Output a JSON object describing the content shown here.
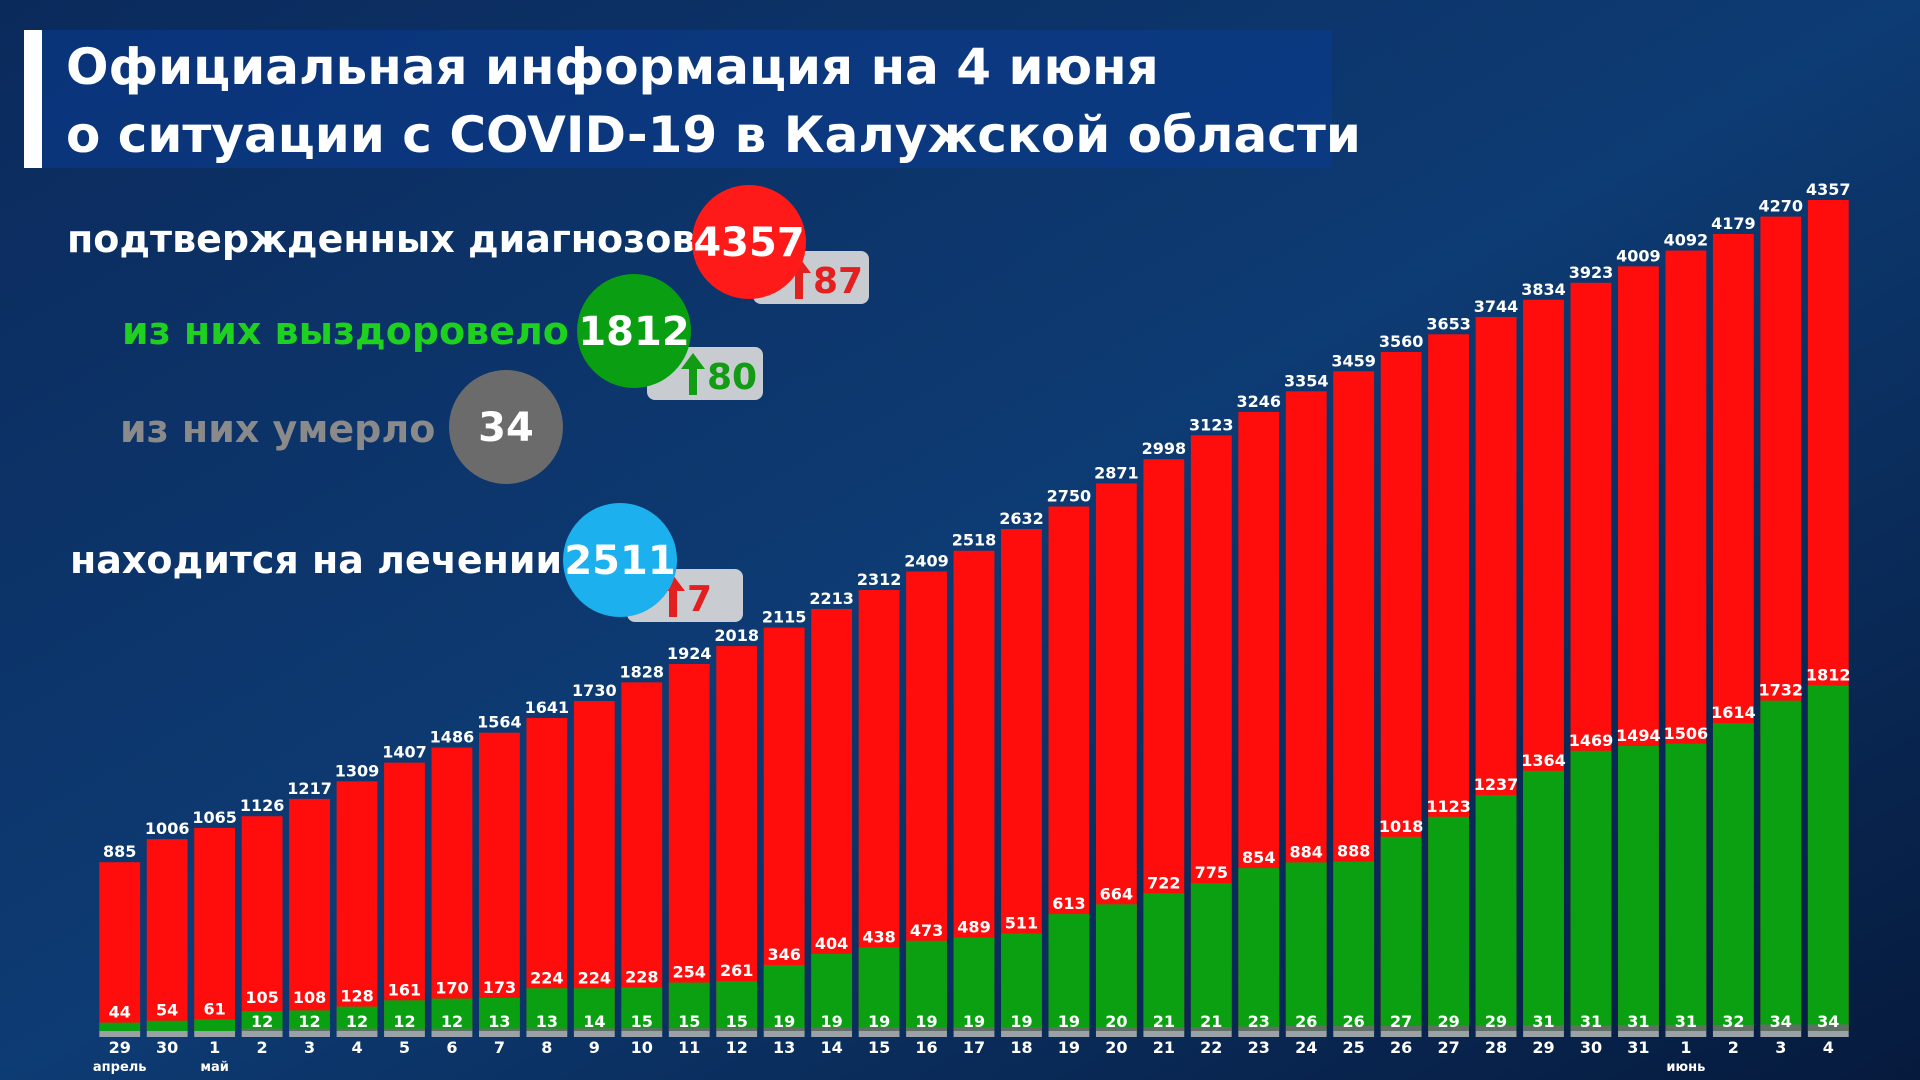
{
  "header": {
    "title": [
      "Официальная информация на 4 июня",
      "о ситуации с COVID-19 в Калужской области"
    ]
  },
  "summary": [
    {
      "label": "подтвержденных диагнозов",
      "value": 4357,
      "change": 87,
      "color": "#ff1a1a",
      "label_color": "#ffffff",
      "change_color": "#e41f1f"
    },
    {
      "label": "из них выздоровело",
      "value": 1812,
      "change": 80,
      "color": "#0a9e12",
      "label_color": "#1fd11f",
      "change_color": "#129c14"
    },
    {
      "label": "из них умерло",
      "value": 34,
      "color": "#6b6b6b",
      "label_color": "#8a8a8a"
    },
    {
      "label": "находится на лечении",
      "value": 2511,
      "change": 7,
      "color": "#1cb0ee",
      "label_color": "#ffffff",
      "change_color": "#e41f1f"
    }
  ],
  "chart_data": {
    "type": "bar",
    "categories": [
      "29",
      "30",
      "1",
      "2",
      "3",
      "4",
      "5",
      "6",
      "7",
      "8",
      "9",
      "10",
      "11",
      "12",
      "13",
      "14",
      "15",
      "16",
      "17",
      "18",
      "19",
      "20",
      "21",
      "22",
      "23",
      "24",
      "25",
      "26",
      "27",
      "28",
      "29",
      "30",
      "31",
      "1",
      "2",
      "3",
      "4"
    ],
    "months": [
      "апрель",
      null,
      "май",
      null,
      null,
      null,
      null,
      null,
      null,
      null,
      null,
      null,
      null,
      null,
      null,
      null,
      null,
      null,
      null,
      null,
      null,
      null,
      null,
      null,
      null,
      null,
      null,
      null,
      null,
      null,
      null,
      null,
      null,
      "июнь",
      null,
      null,
      null
    ],
    "series": [
      {
        "color": "#ff0d0d",
        "values": [
          885,
          1006,
          1065,
          1126,
          1217,
          1309,
          1407,
          1486,
          1564,
          1641,
          1730,
          1828,
          1924,
          2018,
          2115,
          2213,
          2312,
          2409,
          2518,
          2632,
          2750,
          2871,
          2998,
          3123,
          3246,
          3354,
          3459,
          3560,
          3653,
          3744,
          3834,
          3923,
          4009,
          4092,
          4179,
          4270,
          4357
        ]
      },
      {
        "color": "#0aa012",
        "values": [
          44,
          54,
          61,
          105,
          108,
          128,
          161,
          170,
          173,
          224,
          224,
          228,
          254,
          261,
          346,
          404,
          438,
          473,
          489,
          511,
          613,
          664,
          722,
          775,
          854,
          884,
          888,
          1018,
          1123,
          1237,
          1364,
          1469,
          1494,
          1506,
          1614,
          1732,
          1812
        ]
      },
      {
        "color": "#5f6f66",
        "values": [
          null,
          null,
          null,
          12,
          12,
          12,
          12,
          12,
          13,
          13,
          14,
          15,
          15,
          15,
          19,
          19,
          19,
          19,
          19,
          19,
          19,
          20,
          21,
          21,
          23,
          26,
          26,
          27,
          29,
          29,
          31,
          31,
          31,
          31,
          32,
          34,
          34
        ]
      }
    ]
  }
}
